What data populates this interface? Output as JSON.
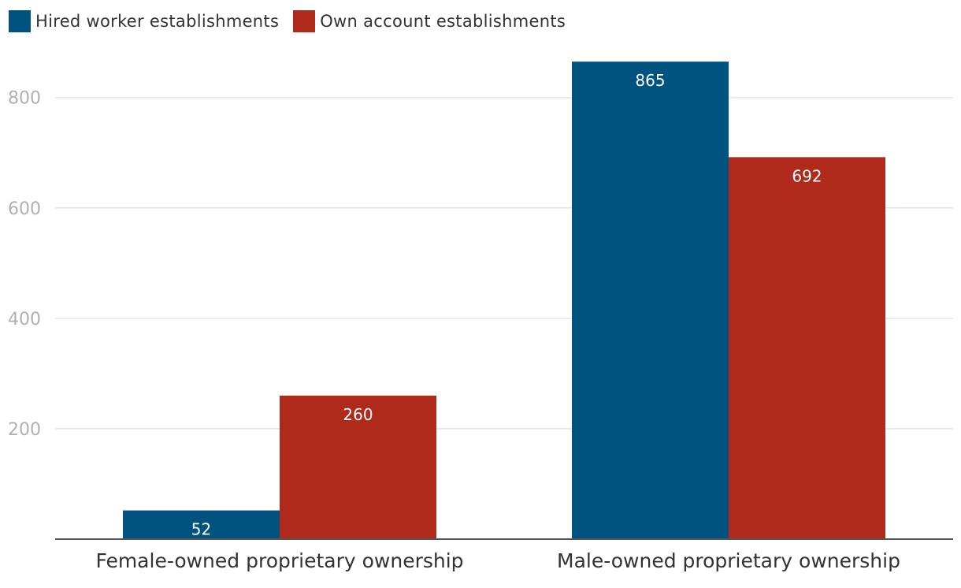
{
  "chart_data": {
    "type": "bar",
    "title": "",
    "xlabel": "",
    "ylabel": "",
    "categories": [
      "Female-owned proprietary ownership",
      "Male-owned proprietary ownership"
    ],
    "series": [
      {
        "name": "Hired worker establishments",
        "color": "#00527f",
        "values": [
          52,
          865
        ]
      },
      {
        "name": "Own account establishments",
        "color": "#b02a1b",
        "values": [
          260,
          692
        ]
      }
    ],
    "ylim": [
      0,
      900
    ],
    "yticks": [
      200,
      400,
      600,
      800
    ],
    "grid": true,
    "legend_position": "top-left",
    "colors": {
      "grid": "#e4e4e4",
      "axis": "#555555",
      "tick_text": "#b0b0b0",
      "label_text": "#333333"
    }
  }
}
